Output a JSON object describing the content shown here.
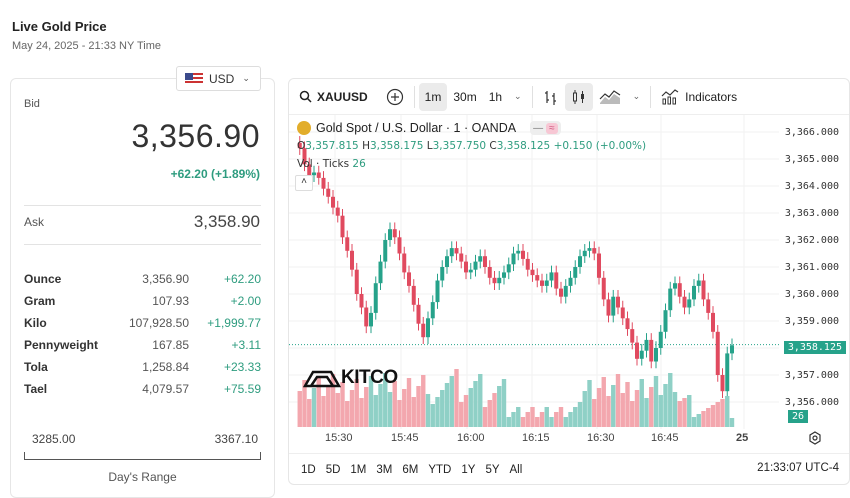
{
  "header": {
    "title": "Live Gold Price",
    "subtitle": "May 24, 2025 - 21:33 NY Time"
  },
  "currency": {
    "selected": "USD",
    "icon": "us-flag-icon"
  },
  "quote": {
    "bid_label": "Bid",
    "bid": "3,356.90",
    "change": "+62.20 (+1.89%)",
    "ask_label": "Ask",
    "ask": "3,358.90"
  },
  "units": [
    {
      "name": "Ounce",
      "price": "3,356.90",
      "change": "+62.20"
    },
    {
      "name": "Gram",
      "price": "107.93",
      "change": "+2.00"
    },
    {
      "name": "Kilo",
      "price": "107,928.50",
      "change": "+1,999.77"
    },
    {
      "name": "Pennyweight",
      "price": "167.85",
      "change": "+3.11"
    },
    {
      "name": "Tola",
      "price": "1,258.84",
      "change": "+23.33"
    },
    {
      "name": "Tael",
      "price": "4,079.57",
      "change": "+75.59"
    }
  ],
  "range": {
    "low": "3285.00",
    "high": "3367.10",
    "label": "Day's Range"
  },
  "chart": {
    "symbol": "XAUUSD",
    "intervals": [
      "1m",
      "30m",
      "1h"
    ],
    "active_interval": "1m",
    "indicators_label": "Indicators",
    "legend_title": "Gold Spot / U.S. Dollar · 1 · OANDA",
    "ohlc": {
      "o": "3,357.815",
      "h": "3,358.175",
      "l": "3,357.750",
      "c": "3,358.125",
      "chg": "+0.150 (+0.00%)"
    },
    "vol_label": "Vol · Ticks",
    "vol_value": "26",
    "y_ticks": [
      "3,366.000",
      "3,365.000",
      "3,364.000",
      "3,363.000",
      "3,362.000",
      "3,361.000",
      "3,360.000",
      "3,359.000",
      "3,357.000",
      "3,356.000"
    ],
    "last_price": "3,358.125",
    "last_vol": "26",
    "x_ticks": [
      "15:30",
      "15:45",
      "16:00",
      "16:15",
      "16:30",
      "16:45",
      "25"
    ],
    "ranges": [
      "1D",
      "5D",
      "1M",
      "3M",
      "6M",
      "YTD",
      "1Y",
      "5Y",
      "All"
    ],
    "clock": "21:33:07 UTC-4",
    "watermark": "KITCO",
    "colors": {
      "up": "#26a28a",
      "down": "#e04a5f",
      "up_vol": "#8fd0c6",
      "down_vol": "#f3a7ae"
    }
  }
}
